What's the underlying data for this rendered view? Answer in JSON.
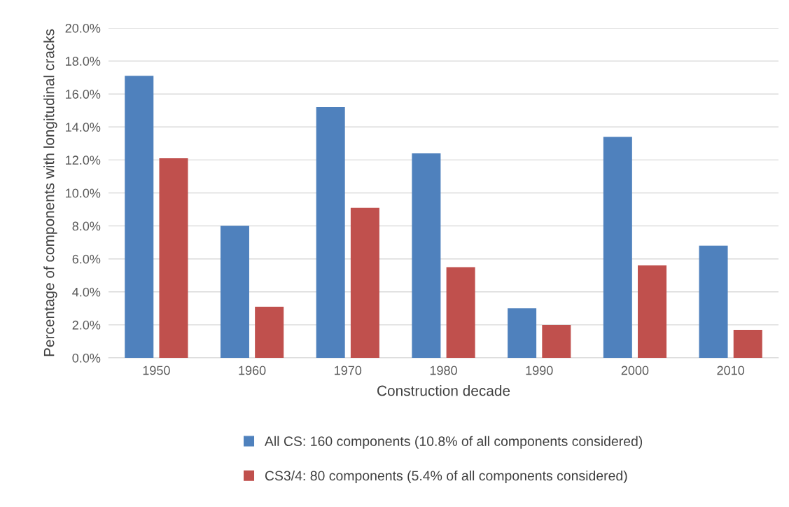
{
  "chart_data": {
    "type": "bar",
    "xlabel": "Construction decade",
    "ylabel": "Percentage of components with longitudinal cracks",
    "categories": [
      "1950",
      "1960",
      "1970",
      "1980",
      "1990",
      "2000",
      "2010"
    ],
    "series": [
      {
        "name": "All CS: 160 components (10.8% of all components considered)",
        "color": "#4f81bd",
        "values": [
          17.1,
          8.0,
          15.2,
          12.4,
          3.0,
          13.4,
          6.8
        ]
      },
      {
        "name": "CS3/4: 80 components (5.4% of all components considered)",
        "color": "#c0504d",
        "values": [
          12.1,
          3.1,
          9.1,
          5.5,
          2.0,
          5.6,
          1.7
        ]
      }
    ],
    "ylim": [
      0,
      20
    ],
    "yticks": [
      {
        "value": 0,
        "label": "0.0%"
      },
      {
        "value": 2,
        "label": "2.0%"
      },
      {
        "value": 4,
        "label": "4.0%"
      },
      {
        "value": 6,
        "label": "6.0%"
      },
      {
        "value": 8,
        "label": "8.0%"
      },
      {
        "value": 10,
        "label": "10.0%"
      },
      {
        "value": 12,
        "label": "12.0%"
      },
      {
        "value": 14,
        "label": "14.0%"
      },
      {
        "value": 16,
        "label": "16.0%"
      },
      {
        "value": 18,
        "label": "18.0%"
      },
      {
        "value": 20,
        "label": "20.0%"
      }
    ],
    "grid": "y",
    "legend": "bottom"
  }
}
